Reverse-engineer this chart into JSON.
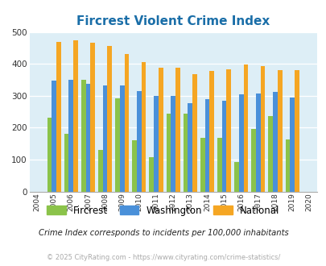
{
  "title": "Fircrest Violent Crime Index",
  "years": [
    2004,
    2005,
    2006,
    2007,
    2008,
    2009,
    2010,
    2011,
    2012,
    2013,
    2014,
    2015,
    2016,
    2017,
    2018,
    2019,
    2020
  ],
  "fircrest": [
    null,
    232,
    180,
    350,
    130,
    292,
    160,
    108,
    245,
    245,
    167,
    167,
    93,
    195,
    237,
    163,
    null
  ],
  "washington": [
    null,
    347,
    350,
    337,
    333,
    333,
    315,
    299,
    299,
    278,
    289,
    284,
    304,
    306,
    312,
    295,
    null
  ],
  "national": [
    null,
    469,
    474,
    467,
    455,
    432,
    405,
    388,
    387,
    368,
    377,
    383,
    398,
    394,
    380,
    380,
    null
  ],
  "bar_color_fircrest": "#8bc34a",
  "bar_color_washington": "#4a90d9",
  "bar_color_national": "#f5a623",
  "bg_color": "#ddeef6",
  "ylim": [
    0,
    500
  ],
  "yticks": [
    0,
    100,
    200,
    300,
    400,
    500
  ],
  "legend_labels": [
    "Fircrest",
    "Washington",
    "National"
  ],
  "footnote1": "Crime Index corresponds to incidents per 100,000 inhabitants",
  "footnote2": "© 2025 CityRating.com - https://www.cityrating.com/crime-statistics/",
  "title_color": "#1a6ea8",
  "footnote1_color": "#222222",
  "footnote2_color": "#aaaaaa"
}
